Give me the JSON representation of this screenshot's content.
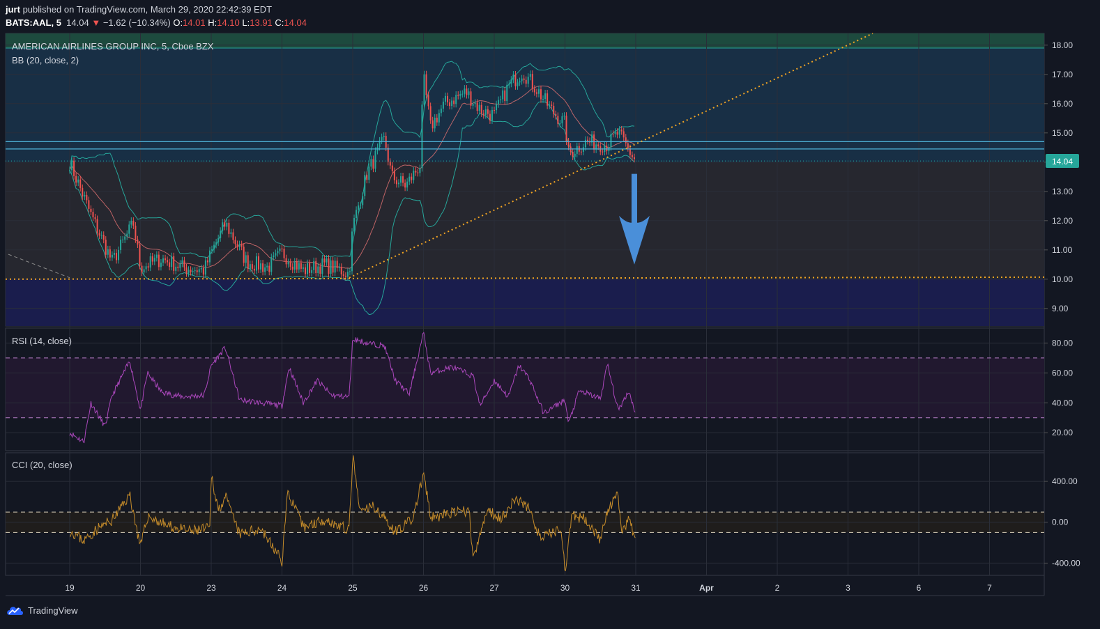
{
  "header": {
    "author": "jurt",
    "published_text": "published on TradingView.com, March 29, 2020 22:42:39 EDT",
    "symbol": "BATS:AAL, 5",
    "price": "14.04",
    "change": "−1.62 (−10.34%)",
    "o_label": "O:",
    "o_value": "14.01",
    "h_label": "H:",
    "h_value": "14.10",
    "l_label": "L:",
    "l_value": "13.91",
    "c_label": "C:",
    "c_value": "14.04"
  },
  "footer": {
    "brand": "TradingView"
  },
  "colors": {
    "background": "#131722",
    "grid": "#2a2e39",
    "candle_up": "#26a69a",
    "candle_down": "#ef5350",
    "bb_band": "#26a69a",
    "bb_basis": "#e57373",
    "rsi": "#ab47bc",
    "cci": "#c48b2a",
    "trendline": "#f5a623",
    "arrow": "#4a8fd9",
    "price_label": "#26a69a"
  },
  "chart_data": [
    {
      "type": "candlestick",
      "pane": "price",
      "title": "AMERICAN AIRLINES GROUP INC, 5, Cboe BZX",
      "indicator": "BB (20, close, 2)",
      "ylim": [
        8.4,
        18.4
      ],
      "y_ticks": [
        "18.00",
        "17.00",
        "16.00",
        "15.00",
        "14.00",
        "13.00",
        "12.00",
        "11.00",
        "10.00",
        "9.00"
      ],
      "last_price": 14.04,
      "last_price_label": "14.04",
      "x_ticks": [
        "19",
        "20",
        "23",
        "24",
        "25",
        "26",
        "27",
        "30",
        "31",
        "Apr",
        "2",
        "3",
        "6",
        "7"
      ],
      "series": [
        {
          "name": "AAL",
          "points": [
            {
              "d": 0.0,
              "v": 14.0
            },
            {
              "d": 0.3,
              "v": 12.2
            },
            {
              "d": 0.6,
              "v": 10.6
            },
            {
              "d": 0.9,
              "v": 11.9
            },
            {
              "d": 1.0,
              "v": 10.4
            },
            {
              "d": 1.3,
              "v": 10.7
            },
            {
              "d": 1.6,
              "v": 10.4
            },
            {
              "d": 1.9,
              "v": 10.3
            },
            {
              "d": 2.0,
              "v": 10.9
            },
            {
              "d": 2.2,
              "v": 11.9
            },
            {
              "d": 2.5,
              "v": 10.6
            },
            {
              "d": 2.8,
              "v": 10.4
            },
            {
              "d": 3.0,
              "v": 10.9
            },
            {
              "d": 3.3,
              "v": 10.3
            },
            {
              "d": 3.6,
              "v": 10.5
            },
            {
              "d": 3.95,
              "v": 10.2
            },
            {
              "d": 4.0,
              "v": 11.8
            },
            {
              "d": 4.2,
              "v": 13.6
            },
            {
              "d": 4.45,
              "v": 14.8
            },
            {
              "d": 4.55,
              "v": 13.5
            },
            {
              "d": 4.75,
              "v": 13.2
            },
            {
              "d": 4.95,
              "v": 13.9
            },
            {
              "d": 5.0,
              "v": 16.9
            },
            {
              "d": 5.1,
              "v": 15.2
            },
            {
              "d": 5.3,
              "v": 16.0
            },
            {
              "d": 5.6,
              "v": 16.4
            },
            {
              "d": 5.8,
              "v": 15.8
            },
            {
              "d": 6.0,
              "v": 15.6
            },
            {
              "d": 6.2,
              "v": 16.6
            },
            {
              "d": 6.4,
              "v": 17.1
            },
            {
              "d": 6.6,
              "v": 16.5
            },
            {
              "d": 6.8,
              "v": 15.8
            },
            {
              "d": 7.0,
              "v": 15.3
            },
            {
              "d": 7.05,
              "v": 14.3
            },
            {
              "d": 7.3,
              "v": 14.7
            },
            {
              "d": 7.6,
              "v": 14.6
            },
            {
              "d": 7.75,
              "v": 15.0
            },
            {
              "d": 7.9,
              "v": 14.4
            },
            {
              "d": 8.0,
              "v": 14.04
            }
          ]
        }
      ]
    },
    {
      "type": "line",
      "pane": "rsi",
      "title": "RSI (14, close)",
      "ylim": [
        8,
        90
      ],
      "y_ticks": [
        "80.00",
        "60.00",
        "40.00",
        "20.00"
      ],
      "bands": [
        30,
        70
      ],
      "series": [
        {
          "points": [
            {
              "d": 0.0,
              "v": 20
            },
            {
              "d": 0.2,
              "v": 14
            },
            {
              "d": 0.3,
              "v": 40
            },
            {
              "d": 0.5,
              "v": 24
            },
            {
              "d": 0.6,
              "v": 45
            },
            {
              "d": 0.85,
              "v": 68
            },
            {
              "d": 1.0,
              "v": 35
            },
            {
              "d": 1.1,
              "v": 60
            },
            {
              "d": 1.3,
              "v": 47
            },
            {
              "d": 1.6,
              "v": 44
            },
            {
              "d": 1.9,
              "v": 45
            },
            {
              "d": 2.0,
              "v": 65
            },
            {
              "d": 2.2,
              "v": 77
            },
            {
              "d": 2.4,
              "v": 42
            },
            {
              "d": 2.7,
              "v": 40
            },
            {
              "d": 3.0,
              "v": 38
            },
            {
              "d": 3.1,
              "v": 64
            },
            {
              "d": 3.3,
              "v": 40
            },
            {
              "d": 3.5,
              "v": 55
            },
            {
              "d": 3.7,
              "v": 45
            },
            {
              "d": 3.95,
              "v": 44
            },
            {
              "d": 4.0,
              "v": 83
            },
            {
              "d": 4.2,
              "v": 80
            },
            {
              "d": 4.45,
              "v": 78
            },
            {
              "d": 4.6,
              "v": 55
            },
            {
              "d": 4.8,
              "v": 46
            },
            {
              "d": 5.0,
              "v": 87
            },
            {
              "d": 5.1,
              "v": 60
            },
            {
              "d": 5.4,
              "v": 64
            },
            {
              "d": 5.7,
              "v": 58
            },
            {
              "d": 5.8,
              "v": 38
            },
            {
              "d": 6.0,
              "v": 55
            },
            {
              "d": 6.2,
              "v": 44
            },
            {
              "d": 6.35,
              "v": 65
            },
            {
              "d": 6.5,
              "v": 56
            },
            {
              "d": 6.7,
              "v": 33
            },
            {
              "d": 7.0,
              "v": 42
            },
            {
              "d": 7.05,
              "v": 26
            },
            {
              "d": 7.2,
              "v": 48
            },
            {
              "d": 7.5,
              "v": 43
            },
            {
              "d": 7.6,
              "v": 66
            },
            {
              "d": 7.75,
              "v": 35
            },
            {
              "d": 7.9,
              "v": 48
            },
            {
              "d": 8.0,
              "v": 33
            }
          ]
        }
      ]
    },
    {
      "type": "line",
      "pane": "cci",
      "title": "CCI (20, close)",
      "ylim": [
        -520,
        680
      ],
      "y_ticks": [
        "400.00",
        "0.00",
        "-400.00"
      ],
      "bands": [
        -100,
        100
      ],
      "series": [
        {
          "points": [
            {
              "d": 0.0,
              "v": -80
            },
            {
              "d": 0.2,
              "v": -180
            },
            {
              "d": 0.4,
              "v": -60
            },
            {
              "d": 0.6,
              "v": 20
            },
            {
              "d": 0.85,
              "v": 270
            },
            {
              "d": 1.0,
              "v": -250
            },
            {
              "d": 1.1,
              "v": 60
            },
            {
              "d": 1.4,
              "v": -40
            },
            {
              "d": 1.7,
              "v": -90
            },
            {
              "d": 1.98,
              "v": -60
            },
            {
              "d": 2.0,
              "v": 470
            },
            {
              "d": 2.1,
              "v": 120
            },
            {
              "d": 2.2,
              "v": 250
            },
            {
              "d": 2.4,
              "v": -120
            },
            {
              "d": 2.7,
              "v": -60
            },
            {
              "d": 3.0,
              "v": -380
            },
            {
              "d": 3.08,
              "v": 300
            },
            {
              "d": 3.3,
              "v": -50
            },
            {
              "d": 3.6,
              "v": 30
            },
            {
              "d": 3.95,
              "v": -80
            },
            {
              "d": 4.0,
              "v": 650
            },
            {
              "d": 4.1,
              "v": 100
            },
            {
              "d": 4.3,
              "v": 160
            },
            {
              "d": 4.6,
              "v": -90
            },
            {
              "d": 4.85,
              "v": 30
            },
            {
              "d": 5.0,
              "v": 480
            },
            {
              "d": 5.1,
              "v": 40
            },
            {
              "d": 5.4,
              "v": 90
            },
            {
              "d": 5.65,
              "v": 110
            },
            {
              "d": 5.7,
              "v": -380
            },
            {
              "d": 5.9,
              "v": 120
            },
            {
              "d": 6.1,
              "v": 40
            },
            {
              "d": 6.3,
              "v": 230
            },
            {
              "d": 6.5,
              "v": 130
            },
            {
              "d": 6.65,
              "v": -160
            },
            {
              "d": 6.95,
              "v": -60
            },
            {
              "d": 7.0,
              "v": -480
            },
            {
              "d": 7.1,
              "v": 60
            },
            {
              "d": 7.3,
              "v": 30
            },
            {
              "d": 7.5,
              "v": -170
            },
            {
              "d": 7.6,
              "v": 100
            },
            {
              "d": 7.75,
              "v": 280
            },
            {
              "d": 7.8,
              "v": -130
            },
            {
              "d": 7.9,
              "v": 20
            },
            {
              "d": 8.0,
              "v": -160
            }
          ]
        }
      ]
    }
  ],
  "annotations": {
    "support_level": 10.0,
    "trendline": [
      {
        "d": 3.95,
        "v": 10.05
      },
      {
        "d": 11.35,
        "v": 18.4
      }
    ],
    "resistance_lines": [
      14.45,
      14.7
    ],
    "arrow": {
      "d": 7.98,
      "from": 13.6,
      "to": 10.5
    }
  }
}
